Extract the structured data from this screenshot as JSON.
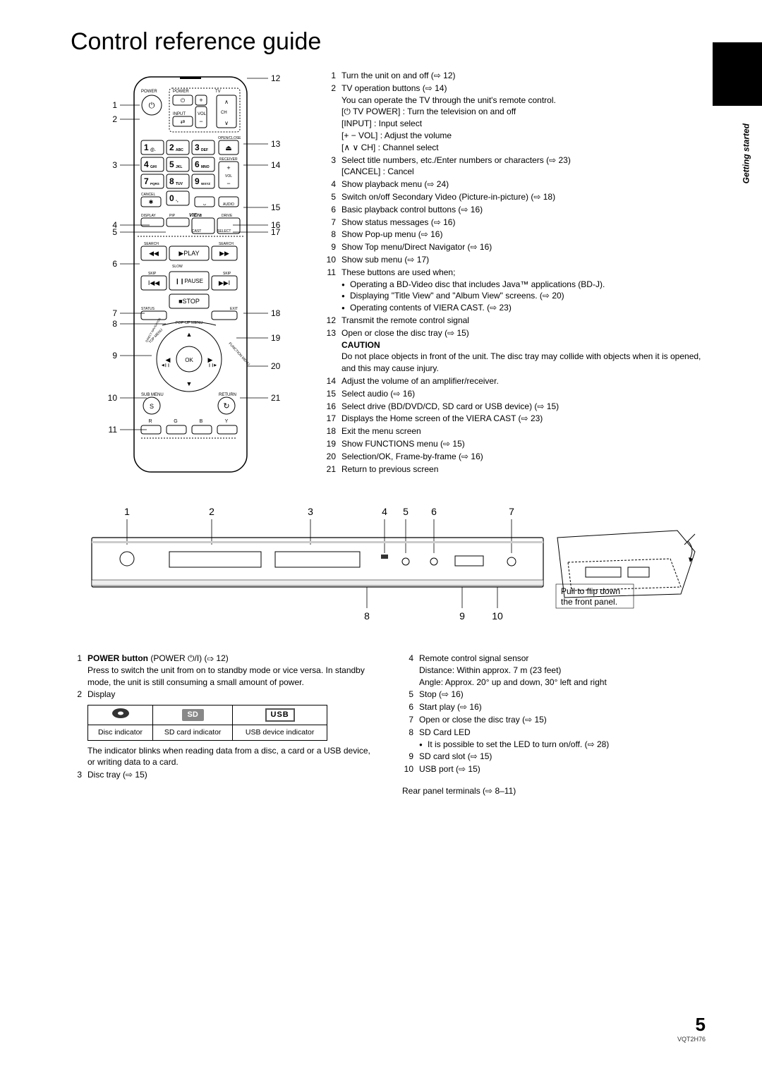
{
  "title": "Control reference guide",
  "side_label": "Getting started",
  "remote_callouts_left": [
    "1",
    "2",
    "3",
    "4",
    "5",
    "6",
    "7",
    "8",
    "9",
    "10",
    "11"
  ],
  "remote_callouts_right": [
    "12",
    "13",
    "14",
    "15",
    "16",
    "17",
    "18",
    "19",
    "20",
    "21"
  ],
  "remote_list": [
    {
      "n": "1",
      "lines": [
        "Turn the unit on and off (⇨ 12)"
      ]
    },
    {
      "n": "2",
      "lines": [
        "TV operation buttons (⇨ 14)",
        "You can operate the TV through the unit's remote control.",
        "[⏻ TV POWER] : Turn the television on and off",
        "[INPUT]  : Input select",
        "[+ − VOL]  : Adjust the volume",
        "[∧ ∨ CH] : Channel select"
      ]
    },
    {
      "n": "3",
      "lines": [
        "Select title numbers, etc./Enter numbers or characters (⇨ 23)",
        "[CANCEL] : Cancel"
      ]
    },
    {
      "n": "4",
      "lines": [
        "Show playback menu (⇨ 24)"
      ]
    },
    {
      "n": "5",
      "lines": [
        "Switch on/off Secondary Video (Picture-in-picture) (⇨ 18)"
      ]
    },
    {
      "n": "6",
      "lines": [
        "Basic playback control buttons (⇨ 16)"
      ]
    },
    {
      "n": "7",
      "lines": [
        "Show status messages (⇨ 16)"
      ]
    },
    {
      "n": "8",
      "lines": [
        "Show Pop-up menu (⇨ 16)"
      ]
    },
    {
      "n": "9",
      "lines": [
        "Show Top menu/Direct Navigator (⇨ 16)"
      ]
    },
    {
      "n": "10",
      "lines": [
        "Show sub menu (⇨ 17)"
      ]
    },
    {
      "n": "11",
      "lines": [
        "These buttons are used when;"
      ],
      "bullets": [
        "Operating a BD-Video disc that includes Java™ applications (BD-J).",
        "Displaying \"Title View\" and \"Album View\" screens. (⇨ 20)",
        "Operating contents of VIERA CAST. (⇨ 23)"
      ]
    },
    {
      "n": "12",
      "lines": [
        "Transmit the remote control signal"
      ]
    },
    {
      "n": "13",
      "lines": [
        "Open or close the disc tray (⇨ 15)"
      ],
      "caution": "CAUTION",
      "caution_text": "Do not place objects in front of the unit. The disc tray may collide with objects when it is opened, and this may cause injury."
    },
    {
      "n": "14",
      "lines": [
        "Adjust the volume of an amplifier/receiver."
      ]
    },
    {
      "n": "15",
      "lines": [
        "Select audio (⇨ 16)"
      ]
    },
    {
      "n": "16",
      "lines": [
        "Select drive (BD/DVD/CD, SD card or USB device) (⇨ 15)"
      ]
    },
    {
      "n": "17",
      "lines": [
        "Displays the Home screen of the VIERA CAST (⇨ 23)"
      ]
    },
    {
      "n": "18",
      "lines": [
        "Exit the menu screen"
      ]
    },
    {
      "n": "19",
      "lines": [
        "Show FUNCTIONS menu (⇨ 15)"
      ]
    },
    {
      "n": "20",
      "lines": [
        "Selection/OK, Frame-by-frame (⇨ 16)"
      ]
    },
    {
      "n": "21",
      "lines": [
        "Return to previous screen"
      ]
    }
  ],
  "unit_top_nums": [
    "1",
    "2",
    "3",
    "4",
    "5",
    "6",
    "7"
  ],
  "unit_bottom_nums": [
    "8",
    "9",
    "10"
  ],
  "unit_note": "Pull to flip down the front panel.",
  "bottom_left": [
    {
      "n": "1",
      "bold": "POWER button",
      "rest": "(POWER ⏻/I) (⇨ 12)",
      "lines": [
        "Press to switch the unit from on to standby mode or vice versa. In standby mode, the unit is still consuming a small amount of power."
      ]
    },
    {
      "n": "2",
      "lines": [
        "Display"
      ]
    }
  ],
  "indicator_table": {
    "cols": 3,
    "labels": [
      "Disc indicator",
      "SD card indicator",
      "USB device indicator"
    ]
  },
  "bottom_left_after": [
    {
      "lines": [
        "The indicator blinks when reading data from a disc, a card or a USB device, or writing data to a card."
      ]
    },
    {
      "n": "3",
      "lines": [
        "Disc tray (⇨ 15)"
      ]
    }
  ],
  "bottom_right": [
    {
      "n": "4",
      "lines": [
        "Remote control signal sensor",
        "Distance: Within approx. 7 m (23 feet)",
        "Angle: Approx. 20° up and down, 30° left and right"
      ]
    },
    {
      "n": "5",
      "lines": [
        "Stop (⇨ 16)"
      ]
    },
    {
      "n": "6",
      "lines": [
        "Start play (⇨ 16)"
      ]
    },
    {
      "n": "7",
      "lines": [
        "Open or close the disc tray (⇨ 15)"
      ]
    },
    {
      "n": "8",
      "lines": [
        "SD Card LED"
      ],
      "bullets": [
        "It is possible to set the LED to turn on/off. (⇨ 28)"
      ]
    },
    {
      "n": "9",
      "lines": [
        "SD card slot (⇨ 15)"
      ]
    },
    {
      "n": "10",
      "lines": [
        "USB port (⇨ 15)"
      ]
    }
  ],
  "rear_panel": "Rear panel terminals (⇨ 8–11)",
  "page_num": "5",
  "doc_code": "VQT2H76",
  "remote_labels": {
    "power": "POWER",
    "tv": "TV",
    "input": "INPUT",
    "vol": "VOL",
    "ch": "CH",
    "open_close": "OPEN/CLOSE",
    "receiver": "RECEIVER",
    "cancel": "CANCEL",
    "audio": "AUDIO",
    "display": "DISPLAY",
    "pip": "PIP",
    "viera": "VIEra",
    "drive": "DRIVE",
    "cast": "CAST",
    "select": "SELECT",
    "search_l": "SEARCH",
    "play": "▶PLAY",
    "search_r": "SEARCH",
    "slow": "SLOW",
    "skip_l": "SKIP",
    "pause": "❙❙PAUSE",
    "skip_r": "SKIP",
    "stop": "■STOP",
    "status": "STATUS",
    "exit": "EXIT",
    "popup": "POP-UP MENU",
    "topmenu": "TOP MENU",
    "funcmenu": "FUNCTION MENU",
    "ok": "OK",
    "submenu": "SUB MENU",
    "return": "RETURN",
    "s": "S",
    "r": "R",
    "g": "G",
    "b": "B",
    "y": "Y",
    "keys": [
      "1@.",
      "2ABC",
      "3DEF",
      "4GHI",
      "5JKL",
      "6MNO",
      "7PQRS",
      "8TUV",
      "9WXYZ",
      "0-,"
    ]
  }
}
